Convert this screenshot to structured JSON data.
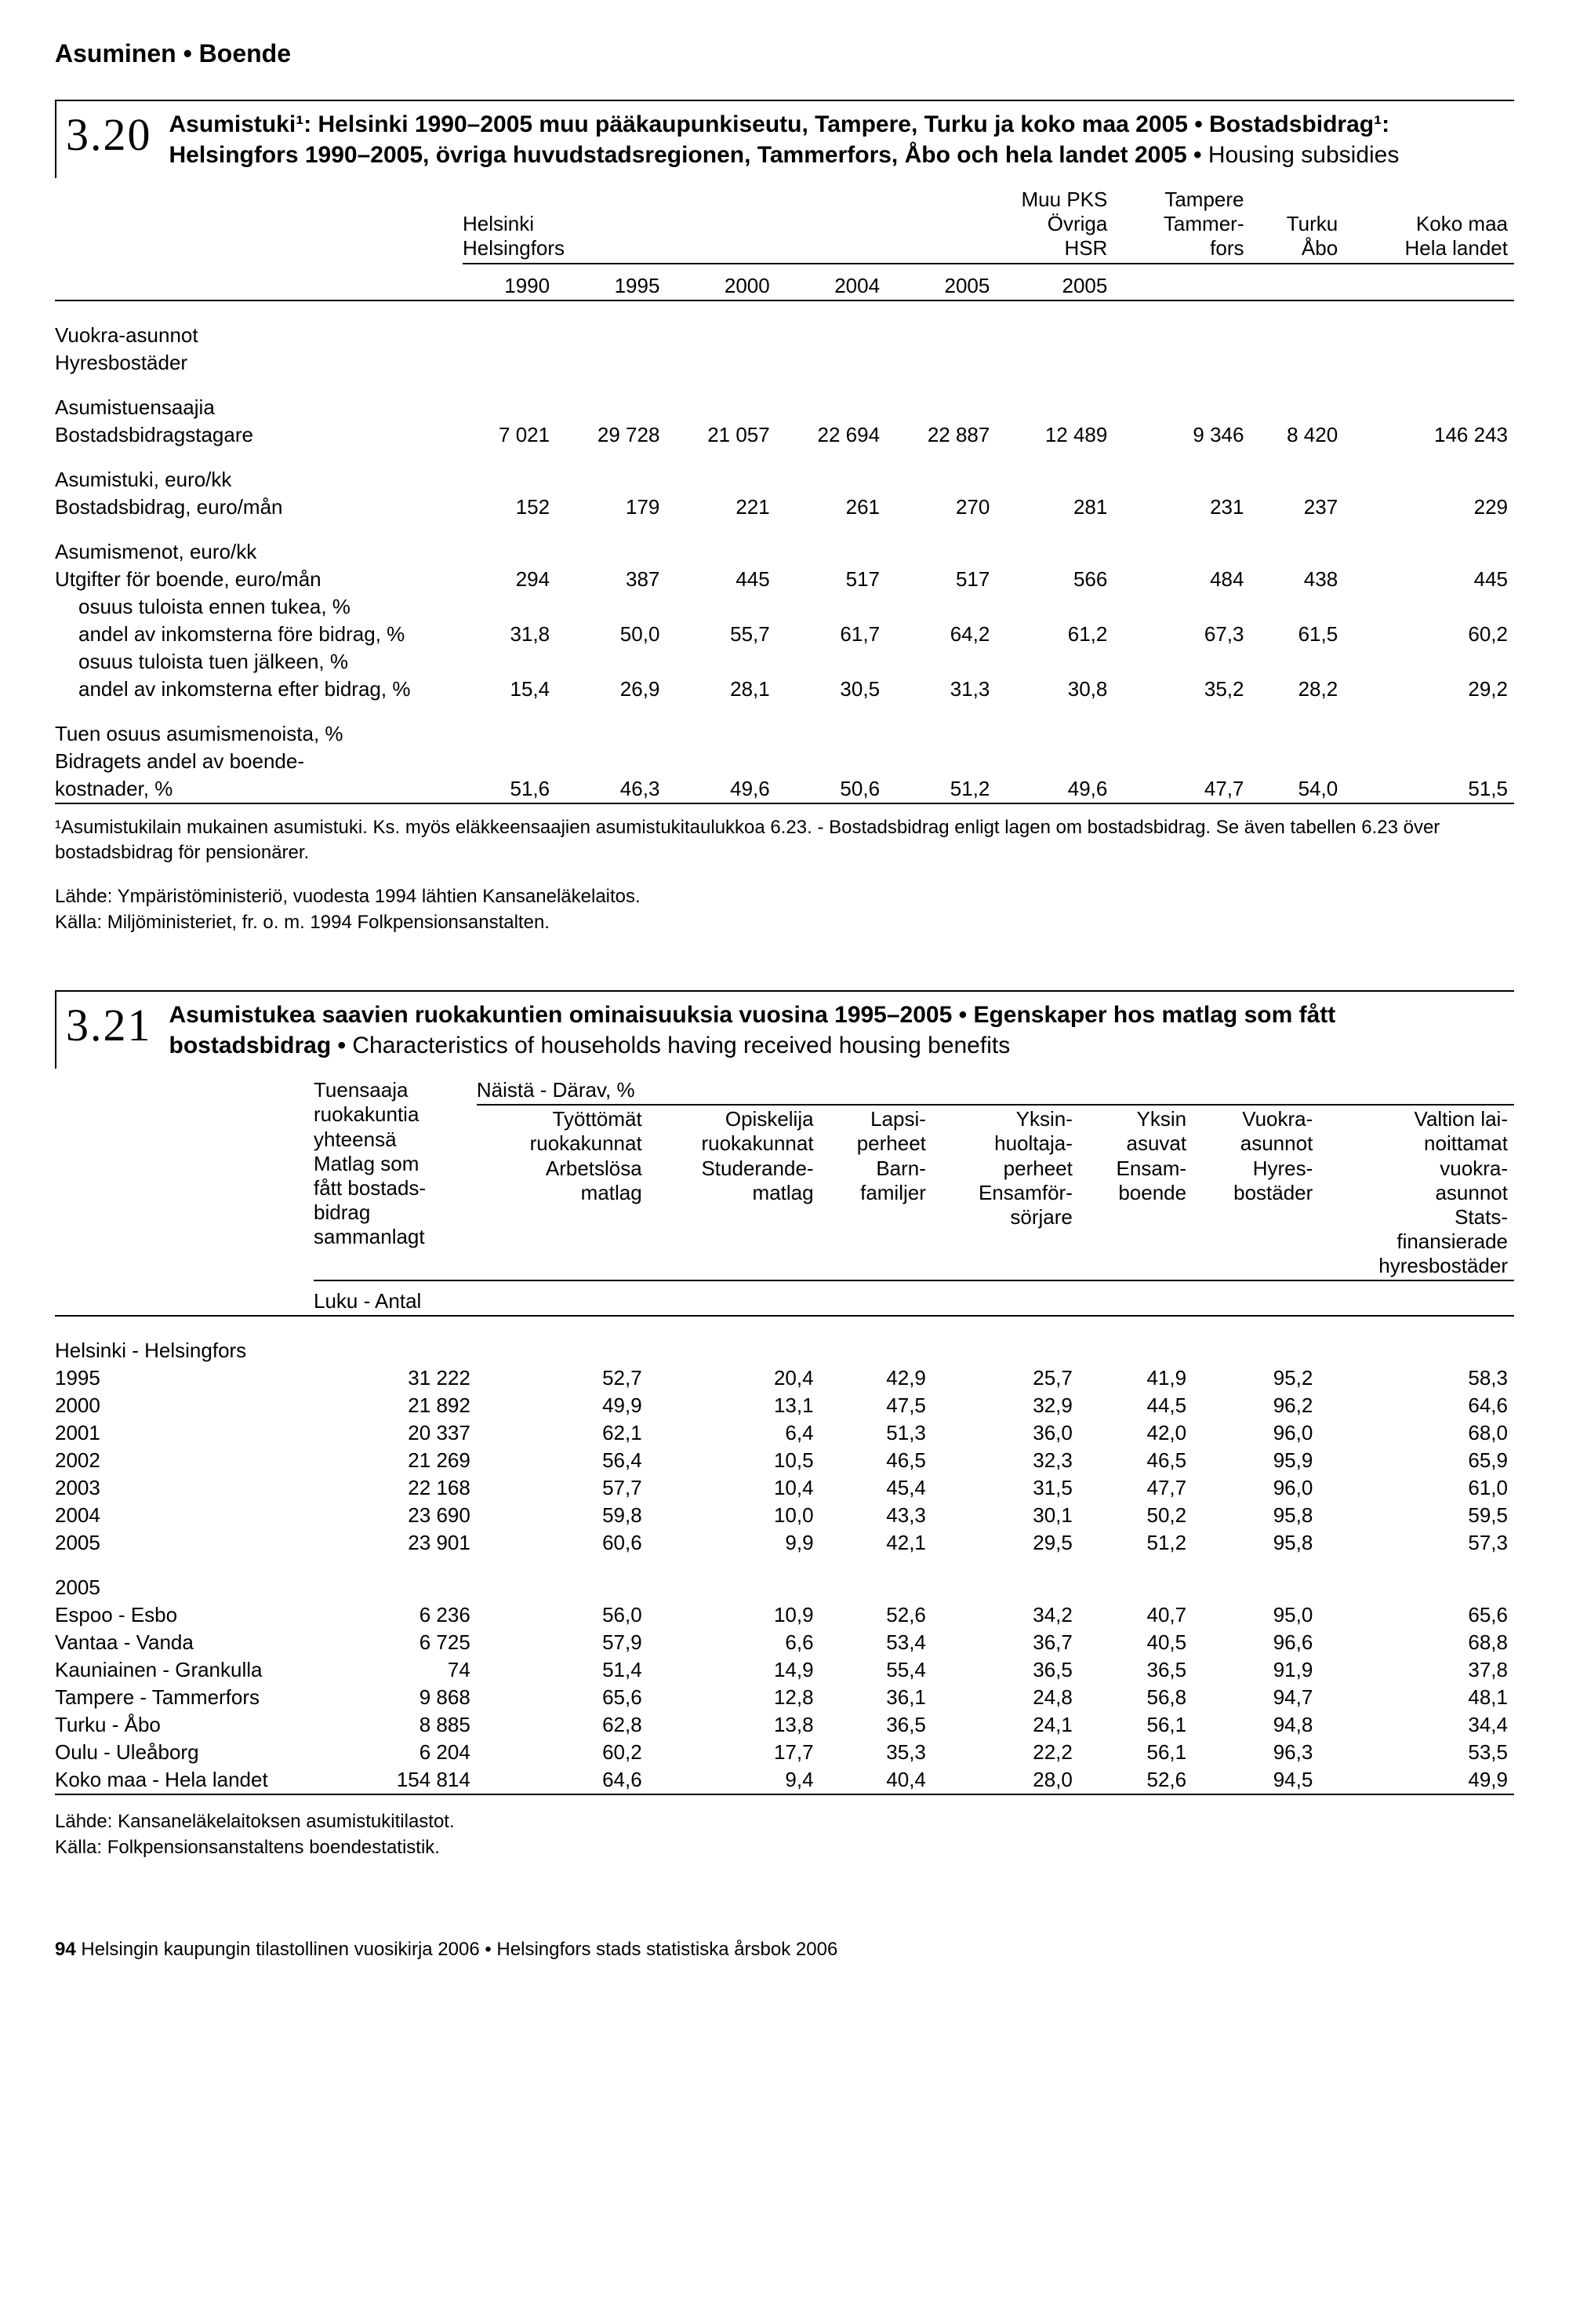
{
  "page": {
    "top_heading": "Asuminen • Boende",
    "footer_num": "94",
    "footer_text": "Helsingin kaupungin tilastollinen vuosikirja 2006 • Helsingfors stads statistiska årsbok 2006"
  },
  "t320": {
    "section_num": "3.20",
    "title_bold1": "Asumistuki¹: Helsinki 1990–2005 muu pääkaupunkiseutu, Tampere, Turku ja koko maa 2005 •  Bostadsbidrag¹: Helsingfors 1990–2005, övriga huvudstadsregionen, Tammerfors, Åbo och hela landet 2005 • ",
    "title_light": "Housing subsidies",
    "head": {
      "helsinki1": "Helsinki",
      "helsinki2": "Helsingfors",
      "muupks1": "Muu PKS",
      "muupks2": "Övriga",
      "muupks3": "HSR",
      "tampere1": "Tampere",
      "tampere2": "Tammer-",
      "tampere3": "fors",
      "turku1": "Turku",
      "turku2": "Åbo",
      "koko1": "Koko maa",
      "koko2": "Hela landet",
      "y1990": "1990",
      "y1995": "1995",
      "y2000": "2000",
      "y2004": "2004",
      "y2005a": "2005",
      "y2005b": "2005"
    },
    "rows": {
      "vuokra1": "Vuokra-asunnot",
      "vuokra2": "Hyresbostäder",
      "asumistuensaajia1": "Asumistuensaajia",
      "asumistuensaajia2": "Bostadsbidragstagare",
      "asumistuensaajia_v": [
        "7 021",
        "29 728",
        "21 057",
        "22 694",
        "22 887",
        "12 489",
        "9 346",
        "8 420",
        "146 243"
      ],
      "asumistuki1": "Asumistuki, euro/kk",
      "asumistuki2": "Bostadsbidrag, euro/mån",
      "asumistuki_v": [
        "152",
        "179",
        "221",
        "261",
        "270",
        "281",
        "231",
        "237",
        "229"
      ],
      "asumismenot1": "Asumismenot, euro/kk",
      "asumismenot2": "Utgifter för boende, euro/mån",
      "asumismenot_v": [
        "294",
        "387",
        "445",
        "517",
        "517",
        "566",
        "484",
        "438",
        "445"
      ],
      "osuus_ennen": "osuus tuloista ennen tukea, %",
      "andel_fore": "andel av inkomsterna före bidrag, %",
      "andel_fore_v": [
        "31,8",
        "50,0",
        "55,7",
        "61,7",
        "64,2",
        "61,2",
        "67,3",
        "61,5",
        "60,2"
      ],
      "osuus_jalkeen": "osuus tuloista tuen jälkeen, %",
      "andel_efter": "andel av inkomsterna efter bidrag, %",
      "andel_efter_v": [
        "15,4",
        "26,9",
        "28,1",
        "30,5",
        "31,3",
        "30,8",
        "35,2",
        "28,2",
        "29,2"
      ],
      "tuen1": "Tuen osuus asumismenoista, %",
      "tuen2": "Bidragets andel av boende-",
      "tuen3": "kostnader, %",
      "tuen_v": [
        "51,6",
        "46,3",
        "49,6",
        "50,6",
        "51,2",
        "49,6",
        "47,7",
        "54,0",
        "51,5"
      ]
    },
    "footnote": "¹Asumistukilain mukainen asumistuki. Ks. myös eläkkeensaajien asumistukitaulukkoa 6.23. - Bostadsbidrag enligt lagen om bostadsbidrag. Se även tabellen 6.23 över bostadsbidrag för pensionärer.",
    "source1": "Lähde: Ympäristöministeriö, vuodesta 1994 lähtien Kansaneläkelaitos.",
    "source2": "Källa: Miljöministeriet, fr. o. m. 1994 Folkpensionsanstalten."
  },
  "t321": {
    "section_num": "3.21",
    "title_bold": "Asumistukea saavien ruokakuntien ominaisuuksia vuosina 1995–2005 • Egenskaper hos matlag som fått bostadsbidrag • ",
    "title_light": "Characteristics of households having received housing benefits",
    "head": {
      "tuensaaja": "Tuensaaja\nruokakuntia\nyhteensä\nMatlag som\nfått bostads-\nbidrag\nsammanlagt",
      "naista": "Näistä - Därav, %",
      "tyottomat": "Työttömät\nruokakunnat\nArbetslösa\nmatlag",
      "opiskelija": "Opiskelija\nruokakunnat\nStuderande-\nmatlag",
      "lapsi": "Lapsi-\nperheet\nBarn-\nfamiljer",
      "yksinh": "Yksin-\nhuoltaja-\nperheet\nEnsamför-\nsörjare",
      "yksin": "Yksin\nasuvat\nEnsam-\nboende",
      "vuokra": "Vuokra-\nasunnot\nHyres-\nbostäder",
      "valtion": "Valtion lai-\nnoittamat\nvuokra-\nasunnot\nStats-\nfinansierade\nhyresbostäder",
      "luku": "Luku - Antal"
    },
    "helsinki_label": "Helsinki - Helsingfors",
    "helsinki": [
      {
        "y": "1995",
        "v": [
          "31 222",
          "52,7",
          "20,4",
          "42,9",
          "25,7",
          "41,9",
          "95,2",
          "58,3"
        ]
      },
      {
        "y": "2000",
        "v": [
          "21 892",
          "49,9",
          "13,1",
          "47,5",
          "32,9",
          "44,5",
          "96,2",
          "64,6"
        ]
      },
      {
        "y": "2001",
        "v": [
          "20 337",
          "62,1",
          "6,4",
          "51,3",
          "36,0",
          "42,0",
          "96,0",
          "68,0"
        ]
      },
      {
        "y": "2002",
        "v": [
          "21 269",
          "56,4",
          "10,5",
          "46,5",
          "32,3",
          "46,5",
          "95,9",
          "65,9"
        ]
      },
      {
        "y": "2003",
        "v": [
          "22 168",
          "57,7",
          "10,4",
          "45,4",
          "31,5",
          "47,7",
          "96,0",
          "61,0"
        ]
      },
      {
        "y": "2004",
        "v": [
          "23 690",
          "59,8",
          "10,0",
          "43,3",
          "30,1",
          "50,2",
          "95,8",
          "59,5"
        ]
      },
      {
        "y": "2005",
        "v": [
          "23 901",
          "60,6",
          "9,9",
          "42,1",
          "29,5",
          "51,2",
          "95,8",
          "57,3"
        ]
      }
    ],
    "y2005_label": "2005",
    "cities": [
      {
        "n": "Espoo - Esbo",
        "v": [
          "6 236",
          "56,0",
          "10,9",
          "52,6",
          "34,2",
          "40,7",
          "95,0",
          "65,6"
        ]
      },
      {
        "n": "Vantaa - Vanda",
        "v": [
          "6 725",
          "57,9",
          "6,6",
          "53,4",
          "36,7",
          "40,5",
          "96,6",
          "68,8"
        ]
      },
      {
        "n": "Kauniainen - Grankulla",
        "v": [
          "74",
          "51,4",
          "14,9",
          "55,4",
          "36,5",
          "36,5",
          "91,9",
          "37,8"
        ]
      },
      {
        "n": "Tampere - Tammerfors",
        "v": [
          "9 868",
          "65,6",
          "12,8",
          "36,1",
          "24,8",
          "56,8",
          "94,7",
          "48,1"
        ]
      },
      {
        "n": "Turku - Åbo",
        "v": [
          "8 885",
          "62,8",
          "13,8",
          "36,5",
          "24,1",
          "56,1",
          "94,8",
          "34,4"
        ]
      },
      {
        "n": "Oulu - Uleåborg",
        "v": [
          "6 204",
          "60,2",
          "17,7",
          "35,3",
          "22,2",
          "56,1",
          "96,3",
          "53,5"
        ]
      },
      {
        "n": "Koko maa - Hela landet",
        "v": [
          "154 814",
          "64,6",
          "9,4",
          "40,4",
          "28,0",
          "52,6",
          "94,5",
          "49,9"
        ]
      }
    ],
    "source1": "Lähde: Kansaneläkelaitoksen asumistukitilastot.",
    "source2": "Källa: Folkpensionsanstaltens boendestatistik."
  }
}
